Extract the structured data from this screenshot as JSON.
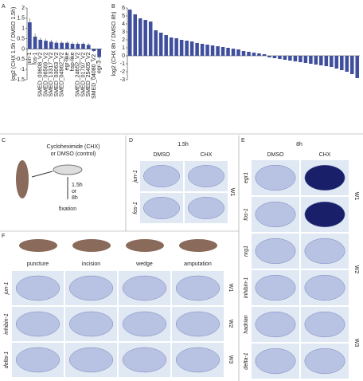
{
  "panel_letters": [
    "A",
    "B",
    "C",
    "D",
    "E",
    "F"
  ],
  "chart_data": [
    {
      "type": "bar",
      "ylabel": "log2 (CHX 1.5h / DMSO 1.5h)",
      "color": "#3f4f9e",
      "categories": [
        "jun-1",
        "fos-1",
        "SMED_03608_V2",
        "SMED_06569_V2",
        "SMED_13317_V2",
        "SMED_03063_V2",
        "SMED_04962_V2",
        "egr-like",
        "hsp-like",
        "SMED_24652_V2",
        "SMED_01797_V2",
        "SMED_25405_V2",
        "SMED_04080_V2",
        "egr-3"
      ],
      "values": [
        1.3,
        0.6,
        0.45,
        0.4,
        0.35,
        0.3,
        0.3,
        0.3,
        0.25,
        0.25,
        0.25,
        0.2,
        -0.1,
        -0.4
      ],
      "errors": [
        0.2,
        0.15,
        0.1,
        0.1,
        0.1,
        0.1,
        0.08,
        0.08,
        0.08,
        0.08,
        0.08,
        0.08,
        0.05,
        0.1
      ],
      "ylim": [
        -1.5,
        2
      ],
      "yticks": [
        -1.5,
        -1,
        -0.5,
        0,
        0.5,
        1,
        1.5,
        2
      ]
    },
    {
      "type": "bar",
      "ylabel": "log2 (CHX 8h / DMSO 8h)",
      "color": "#3f4f9e",
      "categories": [
        null,
        null,
        null,
        null,
        null,
        null,
        null,
        null,
        null,
        null,
        null,
        null,
        null,
        null,
        null,
        null,
        null,
        null,
        null,
        null,
        null,
        null,
        null,
        null,
        null,
        null,
        null,
        null,
        null,
        null,
        null,
        null,
        null,
        null,
        null,
        null,
        null,
        null,
        null,
        null,
        null,
        null,
        null,
        null,
        null
      ],
      "values": [
        5.8,
        5.2,
        4.7,
        4.5,
        4.3,
        3.2,
        2.9,
        2.6,
        2.3,
        2.2,
        2.0,
        1.9,
        1.8,
        1.6,
        1.5,
        1.4,
        1.3,
        1.2,
        1.1,
        1.0,
        0.9,
        0.8,
        0.6,
        0.5,
        0.4,
        0.3,
        0.2,
        -0.2,
        -0.3,
        -0.4,
        -0.5,
        -0.6,
        -0.7,
        -0.8,
        -0.9,
        -1.0,
        -1.1,
        -1.2,
        -1.3,
        -1.4,
        -1.6,
        -1.8,
        -2.0,
        -2.3,
        -2.8
      ],
      "ylim": [
        -3,
        6
      ],
      "yticks": [
        -3,
        -2,
        -1,
        0,
        1,
        2,
        3,
        4,
        5,
        6
      ]
    }
  ],
  "panel_c": {
    "lines": [
      "Cycloheximide (CHX)",
      "or DMSO (control)"
    ],
    "time": [
      "1.5h",
      "or",
      "8h"
    ],
    "step": "fixation"
  },
  "panel_d": {
    "time": "1.5h",
    "columns": [
      "DMSO",
      "CHX"
    ],
    "rows": [
      "jun-1",
      "fos-1"
    ],
    "group": "W1"
  },
  "panel_e": {
    "time": "8h",
    "columns": [
      "DMSO",
      "CHX"
    ],
    "rows": [
      "egr1",
      "fos-1",
      "nrg1",
      "inhibin-1",
      "hadrian",
      "delta-1"
    ],
    "groups": [
      "W1",
      "W2",
      "W3"
    ]
  },
  "panel_f": {
    "columns": [
      "puncture",
      "incision",
      "wedge",
      "amputation"
    ],
    "rows": [
      "jun-1",
      "inhibin-1",
      "delta-1"
    ],
    "groups": [
      "W1",
      "W2",
      "W3"
    ]
  }
}
